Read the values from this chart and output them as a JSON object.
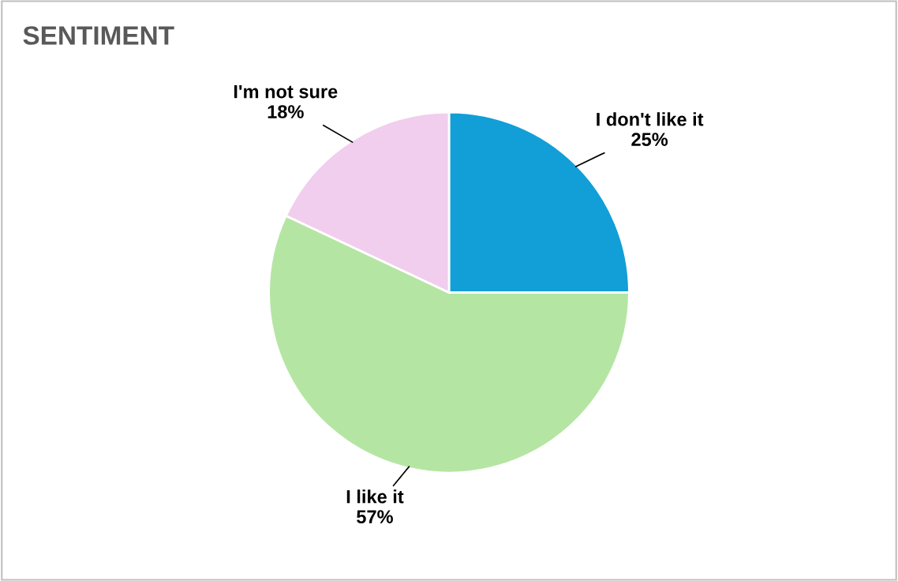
{
  "chart_data": {
    "type": "pie",
    "title": "SENTIMENT",
    "categories": [
      "I don't like it",
      "I like it",
      "I'm not sure"
    ],
    "values": [
      25,
      57,
      18
    ],
    "value_labels": [
      "25%",
      "57%",
      "18%"
    ],
    "colors": [
      "#129ed6",
      "#b5e5a3",
      "#f1cdee"
    ],
    "legend": false
  }
}
